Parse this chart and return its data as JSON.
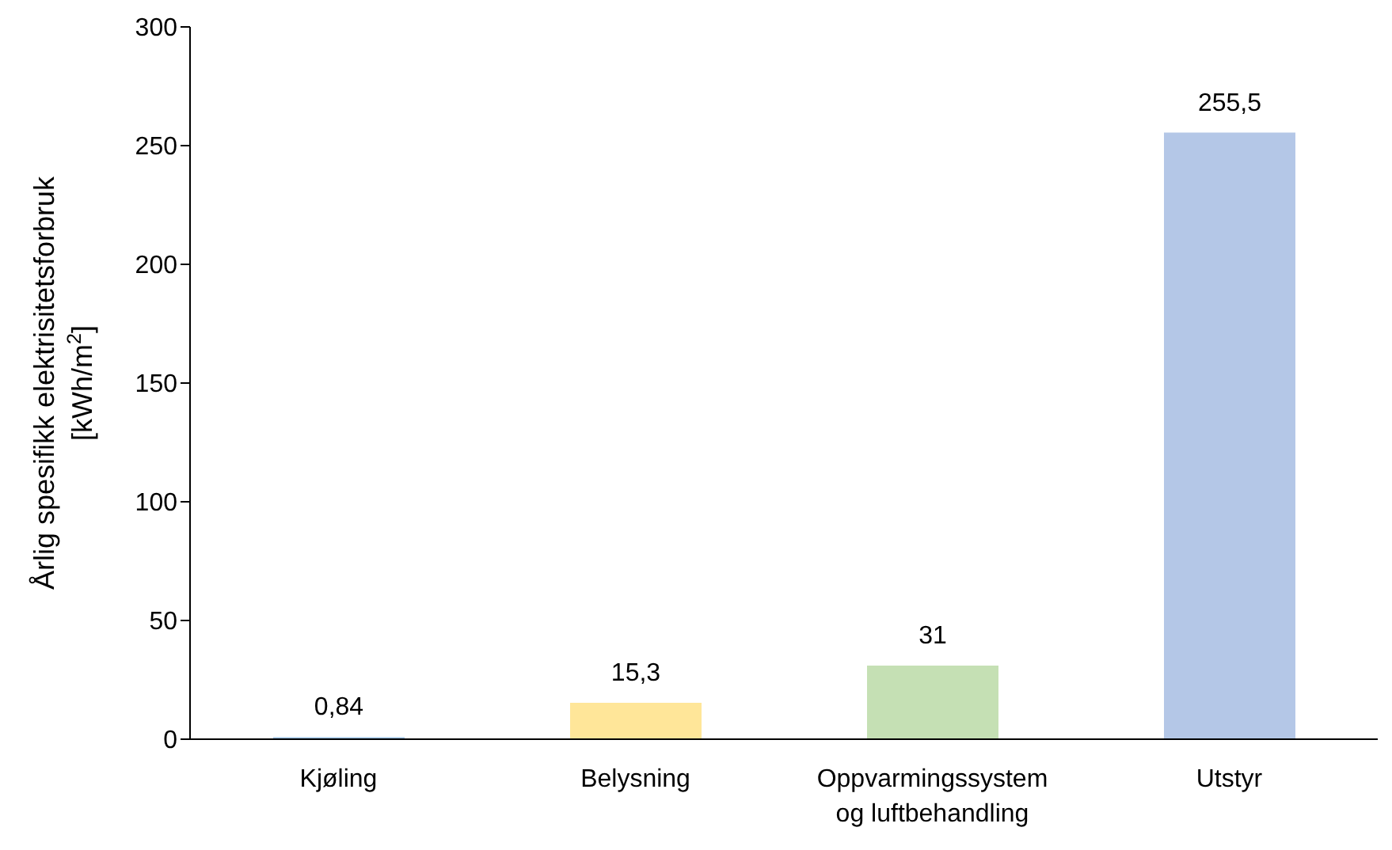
{
  "chart_data": {
    "type": "bar",
    "ylabel": "Årlig spesifikk elektrisitetsforbruk\n[kWh/m$^{2}$]",
    "categories": [
      "Kjøling",
      "Belysning",
      "Oppvarmingssystem og luftbehandling",
      "Utstyr"
    ],
    "values": [
      0.84,
      15.3,
      31,
      255.5
    ],
    "value_labels": [
      "0,84",
      "15,3",
      "31",
      "255,5"
    ],
    "colors": [
      "#9dc3e6",
      "#ffe699",
      "#c5e0b4",
      "#b4c7e7"
    ],
    "ylim": [
      0,
      300
    ],
    "yticks": [
      0,
      50,
      100,
      150,
      200,
      250,
      300
    ]
  }
}
